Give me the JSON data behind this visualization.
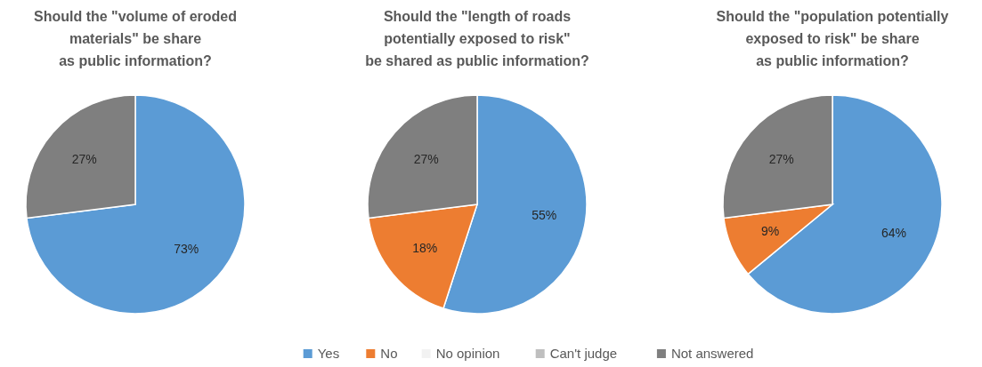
{
  "chart_data": [
    {
      "type": "pie",
      "title": "Should the \"volume of eroded\nmaterials\" be share\nas public information?",
      "categories": [
        null,
        null,
        null,
        null,
        null
      ],
      "values": [
        73,
        0,
        0,
        0,
        27
      ],
      "colors": [
        "#5b9bd5",
        "#ed7d31",
        "#f2f2f2",
        "#bfbfbf",
        "#7f7f7f"
      ],
      "value_labels": [
        "73%",
        null,
        null,
        null,
        "27%"
      ]
    },
    {
      "type": "pie",
      "title": "Should the \"length of roads\npotentially exposed to risk\"\nbe shared as public information?",
      "categories": [
        "Yes",
        "No",
        "No opinion",
        "Can't judge",
        "Not answered"
      ],
      "values": [
        55,
        18,
        0,
        0,
        27
      ],
      "colors": [
        "#5b9bd5",
        "#ed7d31",
        "#f2f2f2",
        "#bfbfbf",
        "#7f7f7f"
      ],
      "value_labels": [
        "55%",
        "18%",
        null,
        null,
        "27%"
      ],
      "legend": "bottom"
    },
    {
      "type": "pie",
      "title": "Should the \"population potentially\nexposed to risk\" be share\nas public information?",
      "categories": [
        null,
        null,
        null,
        null,
        null
      ],
      "values": [
        64,
        9,
        0,
        0,
        27
      ],
      "colors": [
        "#5b9bd5",
        "#ed7d31",
        "#f2f2f2",
        "#bfbfbf",
        "#7f7f7f"
      ],
      "value_labels": [
        "64%",
        "9%",
        null,
        null,
        "27%"
      ]
    }
  ]
}
